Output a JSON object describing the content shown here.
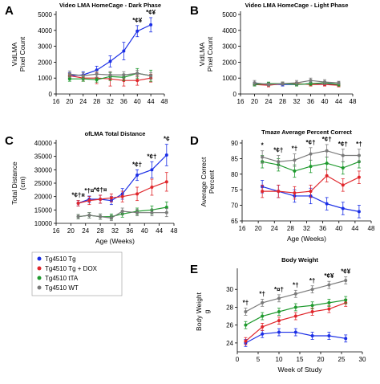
{
  "colors": {
    "Tg": "#1a2ee6",
    "TgDox": "#e0262b",
    "tTA": "#1f9a2e",
    "WT": "#7a7a7a"
  },
  "legend": [
    "Tg4510 Tg",
    "Tg4510 Tg + DOX",
    "Tg4510 tTA",
    "Tg4510 WT"
  ],
  "chart_data": [
    {
      "panel": "A",
      "type": "line",
      "title": "Video LMA HomeCage - Dark Phase",
      "xlabel": "",
      "ylabel": "VidLMA\nPixel Count",
      "xlim": [
        16,
        48
      ],
      "ylim": [
        0,
        5000
      ],
      "xticks": [
        16,
        20,
        24,
        28,
        32,
        36,
        40,
        44,
        48
      ],
      "yticks": [
        0,
        1000,
        2000,
        3000,
        4000,
        5000
      ],
      "x": [
        20,
        24,
        28,
        32,
        36,
        40,
        44
      ],
      "series": [
        {
          "name": "Tg4510 Tg",
          "color": "Tg",
          "values": [
            1150,
            1200,
            1500,
            2050,
            2700,
            3950,
            4350
          ],
          "err": [
            200,
            200,
            250,
            350,
            550,
            350,
            450
          ]
        },
        {
          "name": "Tg4510 Tg + DOX",
          "color": "TgDox",
          "values": [
            1150,
            1000,
            1000,
            950,
            850,
            850,
            1000
          ],
          "err": [
            150,
            200,
            350,
            450,
            350,
            300,
            250
          ]
        },
        {
          "name": "Tg4510 tTA",
          "color": "tTA",
          "values": [
            950,
            950,
            900,
            1100,
            1050,
            1300,
            1150
          ],
          "err": [
            150,
            150,
            150,
            250,
            200,
            300,
            350
          ]
        },
        {
          "name": "Tg4510 WT",
          "color": "WT",
          "values": [
            1250,
            1150,
            1250,
            1200,
            1200,
            1300,
            1150
          ],
          "err": [
            200,
            200,
            200,
            200,
            200,
            200,
            200
          ]
        }
      ],
      "annotations": [
        {
          "x": 40,
          "label": "*¢¥"
        },
        {
          "x": 44,
          "label": "*¢¥"
        }
      ]
    },
    {
      "panel": "B",
      "type": "line",
      "title": "Video LMA HomeCage - Light Phase",
      "xlabel": "",
      "ylabel": "VidLMA\nPixel Count",
      "xlim": [
        16,
        48
      ],
      "ylim": [
        0,
        5000
      ],
      "xticks": [
        16,
        20,
        24,
        28,
        32,
        36,
        40,
        44,
        48
      ],
      "yticks": [
        0,
        1000,
        2000,
        3000,
        4000,
        5000
      ],
      "x": [
        20,
        24,
        28,
        32,
        36,
        40,
        44
      ],
      "series": [
        {
          "name": "Tg4510 Tg",
          "color": "Tg",
          "values": [
            650,
            600,
            600,
            600,
            650,
            600,
            600
          ],
          "err": [
            100,
            100,
            100,
            100,
            100,
            100,
            100
          ]
        },
        {
          "name": "Tg4510 Tg + DOX",
          "color": "TgDox",
          "values": [
            600,
            550,
            650,
            650,
            600,
            600,
            550
          ],
          "err": [
            100,
            100,
            100,
            100,
            100,
            100,
            100
          ]
        },
        {
          "name": "Tg4510 tTA",
          "color": "tTA",
          "values": [
            600,
            650,
            650,
            600,
            650,
            700,
            600
          ],
          "err": [
            100,
            100,
            100,
            100,
            100,
            100,
            100
          ]
        },
        {
          "name": "Tg4510 WT",
          "color": "WT",
          "values": [
            700,
            600,
            650,
            700,
            850,
            750,
            700
          ],
          "err": [
            150,
            100,
            100,
            150,
            150,
            150,
            100
          ]
        }
      ],
      "annotations": []
    },
    {
      "panel": "C",
      "type": "line",
      "title": "ofLMA Total Distance",
      "xlabel": "Age (Weeks)",
      "ylabel": "Total Distance\n(cm)",
      "xlim": [
        16,
        48
      ],
      "ylim": [
        10000,
        40000
      ],
      "xticks": [
        16,
        20,
        24,
        28,
        32,
        36,
        40,
        44,
        48
      ],
      "yticks": [
        10000,
        15000,
        20000,
        25000,
        30000,
        35000,
        40000
      ],
      "x": [
        22,
        25,
        28,
        31,
        34,
        38,
        42,
        46
      ],
      "series": [
        {
          "name": "Tg4510 Tg",
          "color": "Tg",
          "values": [
            17500,
            19000,
            19000,
            18500,
            21000,
            28000,
            30000,
            35500
          ],
          "err": [
            1000,
            1200,
            1500,
            1500,
            2000,
            2000,
            3000,
            4000
          ]
        },
        {
          "name": "Tg4510 Tg + DOX",
          "color": "TgDox",
          "values": [
            17500,
            18500,
            19000,
            19500,
            20000,
            21000,
            23500,
            25500
          ],
          "err": [
            1000,
            1500,
            1500,
            1500,
            2000,
            2500,
            3000,
            3500
          ]
        },
        {
          "name": "Tg4510 tTA",
          "color": "tTA",
          "values": [
            12500,
            13000,
            12500,
            12500,
            13500,
            14500,
            15000,
            16000
          ],
          "err": [
            800,
            1000,
            1000,
            1000,
            1200,
            1200,
            1500,
            2000
          ]
        },
        {
          "name": "Tg4510 WT",
          "color": "WT",
          "values": [
            12500,
            13000,
            12500,
            12000,
            14500,
            14000,
            14000,
            14000
          ],
          "err": [
            800,
            1000,
            1000,
            1000,
            1200,
            1200,
            1200,
            1500
          ]
        }
      ],
      "annotations": [
        {
          "x": 22,
          "label": "*¢†¤"
        },
        {
          "x": 25,
          "label": "*†¤"
        },
        {
          "x": 28,
          "label": "*¢†¤"
        },
        {
          "x": 38,
          "label": "*¢†"
        },
        {
          "x": 42,
          "label": "*¢†"
        },
        {
          "x": 46,
          "label": "*¢"
        }
      ]
    },
    {
      "panel": "D",
      "type": "line",
      "title": "Tmaze Average Percent Correct",
      "xlabel": "Age (Weeks)",
      "ylabel": "Average Correct\nPercent",
      "xlim": [
        16,
        48
      ],
      "ylim": [
        65,
        90
      ],
      "xticks": [
        16,
        20,
        24,
        28,
        32,
        36,
        40,
        44,
        48
      ],
      "yticks": [
        65,
        70,
        75,
        80,
        85,
        90
      ],
      "x": [
        21,
        25,
        29,
        33,
        37,
        41,
        45
      ],
      "series": [
        {
          "name": "Tg4510 Tg",
          "color": "Tg",
          "values": [
            76,
            74.5,
            73,
            73,
            70.5,
            69,
            68
          ],
          "err": [
            2,
            2,
            2,
            2.5,
            2,
            2,
            2
          ]
        },
        {
          "name": "Tg4510 Tg + DOX",
          "color": "TgDox",
          "values": [
            74.5,
            74.5,
            74,
            74.5,
            79.5,
            76.5,
            79
          ],
          "err": [
            2,
            2,
            2,
            2,
            2,
            2,
            2
          ]
        },
        {
          "name": "Tg4510 tTA",
          "color": "tTA",
          "values": [
            84,
            83,
            81,
            82.5,
            83.5,
            82,
            84
          ],
          "err": [
            2,
            2,
            2,
            2,
            2,
            2,
            2
          ]
        },
        {
          "name": "Tg4510 WT",
          "color": "WT",
          "values": [
            85.5,
            84,
            84.5,
            86.5,
            87.5,
            86,
            86
          ],
          "err": [
            2,
            2,
            2,
            2,
            2,
            2,
            2
          ]
        }
      ],
      "annotations": [
        {
          "x": 21,
          "label": "*"
        },
        {
          "x": 25,
          "label": "*¢†"
        },
        {
          "x": 29,
          "label": "*†"
        },
        {
          "x": 33,
          "label": "*¢†"
        },
        {
          "x": 37,
          "label": "*¢†"
        },
        {
          "x": 41,
          "label": "*¢†"
        },
        {
          "x": 45,
          "label": "*†"
        }
      ]
    },
    {
      "panel": "E",
      "type": "line",
      "title": "Body Weight",
      "xlabel": "Week of Study",
      "ylabel": "Body Weight\ng",
      "xlim": [
        0,
        30
      ],
      "ylim": [
        23,
        32
      ],
      "xticks": [
        0,
        5,
        10,
        15,
        20,
        25,
        30
      ],
      "yticks": [
        24,
        26,
        28,
        30
      ],
      "x": [
        2,
        6,
        10,
        14,
        18,
        22,
        26
      ],
      "series": [
        {
          "name": "Tg4510 Tg",
          "color": "Tg",
          "values": [
            24,
            25,
            25.2,
            25.2,
            24.8,
            24.8,
            24.5
          ],
          "err": [
            0.4,
            0.4,
            0.4,
            0.4,
            0.4,
            0.4,
            0.4
          ]
        },
        {
          "name": "Tg4510 Tg + DOX",
          "color": "TgDox",
          "values": [
            24.2,
            25.8,
            26.5,
            27,
            27.5,
            27.8,
            28.5
          ],
          "err": [
            0.4,
            0.4,
            0.4,
            0.4,
            0.4,
            0.4,
            0.4
          ]
        },
        {
          "name": "Tg4510 tTA",
          "color": "tTA",
          "values": [
            26,
            27,
            27.5,
            28,
            28.2,
            28.5,
            28.8
          ],
          "err": [
            0.4,
            0.4,
            0.4,
            0.4,
            0.4,
            0.4,
            0.4
          ]
        },
        {
          "name": "Tg4510 WT",
          "color": "WT",
          "values": [
            27.5,
            28.5,
            29,
            29.5,
            30,
            30.5,
            31
          ],
          "err": [
            0.4,
            0.4,
            0.4,
            0.4,
            0.4,
            0.4,
            0.4
          ]
        }
      ],
      "annotations": [
        {
          "x": 2,
          "label": "*†"
        },
        {
          "x": 6,
          "label": "*†"
        },
        {
          "x": 10,
          "label": "*¤†"
        },
        {
          "x": 14,
          "label": "*†"
        },
        {
          "x": 18,
          "label": "*†"
        },
        {
          "x": 22,
          "label": "*¢¥"
        },
        {
          "x": 26,
          "label": "*¢¥"
        }
      ]
    }
  ]
}
